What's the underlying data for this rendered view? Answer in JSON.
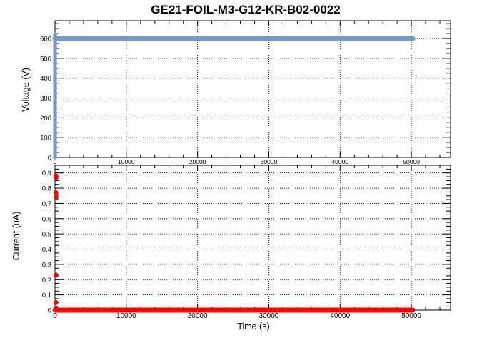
{
  "chart_data": [
    {
      "type": "scatter",
      "title": "GE21-FOIL-M3-G12-KR-B02-0022",
      "xlabel": "",
      "ylabel": "Voltage (V)",
      "xlim": [
        0,
        55500
      ],
      "ylim": [
        0,
        690
      ],
      "x_ticks": [
        0,
        10000,
        20000,
        30000,
        40000,
        50000
      ],
      "y_ticks": [
        0,
        100,
        200,
        300,
        400,
        500,
        600
      ],
      "grid": true,
      "marker_color": "#7899c6",
      "series": [
        {
          "points": [
            [
              0,
              0
            ],
            [
              0,
              40
            ],
            [
              0,
              80
            ],
            [
              0,
              120
            ],
            [
              0,
              160
            ],
            [
              0,
              200
            ],
            [
              0,
              240
            ],
            [
              0,
              280
            ],
            [
              0,
              320
            ],
            [
              0,
              360
            ],
            [
              0,
              400
            ],
            [
              0,
              440
            ],
            [
              0,
              480
            ],
            [
              0,
              520
            ],
            [
              0,
              560
            ],
            [
              0,
              600
            ],
            [
              0,
              620
            ]
          ],
          "flat": {
            "from": 0,
            "to": 50200,
            "y": 600
          }
        }
      ]
    },
    {
      "type": "scatter",
      "title": "",
      "xlabel": "Time (s)",
      "ylabel": "Current (uA)",
      "xlim": [
        0,
        55500
      ],
      "ylim": [
        0,
        0.95
      ],
      "x_ticks": [
        0,
        10000,
        20000,
        30000,
        40000,
        50000
      ],
      "y_ticks": [
        0,
        0.1,
        0.2,
        0.3,
        0.4,
        0.5,
        0.6,
        0.7,
        0.8,
        0.9
      ],
      "grid": true,
      "marker_color": "#ff0000",
      "series": [
        {
          "points": [
            [
              50,
              0.88
            ],
            [
              50,
              0.87
            ],
            [
              50,
              0.77
            ],
            [
              50,
              0.74
            ],
            [
              50,
              0.23
            ],
            [
              50,
              0.05
            ],
            [
              50,
              0.01
            ]
          ],
          "flat": {
            "from": 0,
            "to": 50200,
            "y": 0.0
          }
        }
      ]
    }
  ]
}
